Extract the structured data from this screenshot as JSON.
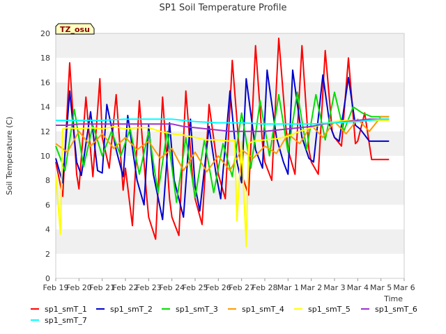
{
  "chart_data": {
    "type": "line",
    "title": "SP1 Soil Temperature Profile",
    "xlabel": "Time",
    "ylabel": "Soil Temperature (C)",
    "badge": "TZ_osu",
    "ylim": [
      0,
      20
    ],
    "yticks": [
      0,
      2,
      4,
      6,
      8,
      10,
      12,
      14,
      16,
      18,
      20
    ],
    "xlim": [
      0,
      15
    ],
    "xtick_labels": [
      "Feb 19",
      "Feb 20",
      "Feb 21",
      "Feb 22",
      "Feb 23",
      "Feb 24",
      "Feb 25",
      "Feb 26",
      "Feb 27",
      "Feb 28",
      "Mar 1",
      "Mar 2",
      "Mar 3",
      "Mar 4",
      "Mar 5",
      "Mar 6"
    ],
    "grid": "horizontal bands",
    "legend_position": "bottom",
    "series": [
      {
        "name": "sp1_smT_1",
        "color": "#ff0000",
        "x": [
          0,
          0.3,
          0.6,
          0.9,
          1,
          1.3,
          1.6,
          1.9,
          2,
          2.3,
          2.6,
          2.9,
          3,
          3.3,
          3.6,
          3.9,
          4,
          4.3,
          4.6,
          4.9,
          5,
          5.3,
          5.6,
          5.9,
          6,
          6.3,
          6.6,
          6.9,
          7,
          7.3,
          7.6,
          7.9,
          8,
          8.3,
          8.6,
          8.9,
          9,
          9.3,
          9.6,
          9.9,
          10,
          10.3,
          10.6,
          10.9,
          11,
          11.3,
          11.6,
          11.9,
          12,
          12.3,
          12.6,
          12.9,
          13,
          13.3,
          13.6,
          13.9,
          14,
          14.2,
          14.35
        ],
        "y": [
          9.5,
          6.7,
          17.6,
          8.5,
          7.3,
          14.8,
          8.3,
          16.3,
          11.5,
          9.0,
          15.0,
          7.2,
          9.0,
          4.3,
          14.5,
          7.0,
          5.0,
          3.2,
          14.8,
          6.5,
          5.0,
          3.5,
          15.3,
          8.0,
          6.5,
          4.4,
          14.2,
          10.0,
          8.5,
          6.5,
          17.8,
          10.5,
          8.5,
          6.8,
          19.0,
          11.0,
          9.5,
          8.0,
          19.6,
          12.5,
          10.5,
          8.5,
          19.0,
          10.5,
          9.5,
          8.5,
          18.6,
          12.0,
          11.5,
          10.8,
          18.0,
          11.0,
          11.2,
          13.5,
          9.7,
          9.7,
          9.7,
          9.7,
          9.7
        ]
      },
      {
        "name": "sp1_smT_2",
        "color": "#0000cc",
        "x": [
          0,
          0.3,
          0.6,
          0.9,
          1.1,
          1.5,
          1.8,
          2,
          2.2,
          2.6,
          2.9,
          3.1,
          3.5,
          3.8,
          4,
          4.2,
          4.6,
          4.9,
          5.1,
          5.5,
          5.8,
          6,
          6.2,
          6.6,
          6.9,
          7.1,
          7.5,
          7.8,
          8,
          8.2,
          8.6,
          8.9,
          9.1,
          9.5,
          9.8,
          10,
          10.2,
          10.6,
          10.9,
          11.1,
          11.5,
          11.8,
          12,
          12.2,
          12.6,
          12.9,
          13.1,
          13.5,
          13.8,
          14,
          14.35
        ],
        "y": [
          9.8,
          7.8,
          15.3,
          9.5,
          8.4,
          13.6,
          8.8,
          8.6,
          14.2,
          10.5,
          8.3,
          13.3,
          8.0,
          6.0,
          12.5,
          8.5,
          4.8,
          12.7,
          8.0,
          5.0,
          13.0,
          7.5,
          5.5,
          12.4,
          8.5,
          6.5,
          15.3,
          9.5,
          7.8,
          16.3,
          10.5,
          9.0,
          17.0,
          11.5,
          9.5,
          8.5,
          17.0,
          11.5,
          9.8,
          9.5,
          16.6,
          12.5,
          11.5,
          11.2,
          16.4,
          12.5,
          12.2,
          11.2,
          11.2,
          11.2,
          11.2
        ]
      },
      {
        "name": "sp1_smT_3",
        "color": "#00dd00",
        "x": [
          0,
          0.4,
          0.8,
          1.2,
          1.6,
          2,
          2.4,
          2.8,
          3.2,
          3.6,
          4,
          4.4,
          4.8,
          5.2,
          5.6,
          6,
          6.4,
          6.8,
          7.2,
          7.6,
          8,
          8.4,
          8.8,
          9.2,
          9.6,
          10,
          10.4,
          10.8,
          11.2,
          11.6,
          12,
          12.4,
          12.8,
          13.2,
          13.6,
          14,
          14.35
        ],
        "y": [
          10.8,
          8.8,
          13.8,
          9.1,
          12.5,
          10.0,
          12.0,
          10.0,
          12.2,
          8.5,
          12.0,
          7.0,
          12.0,
          6.2,
          11.5,
          6.6,
          11.3,
          7.0,
          11.0,
          8.3,
          13.5,
          9.0,
          14.5,
          10.0,
          15.0,
          10.3,
          15.2,
          10.5,
          15.0,
          11.3,
          15.2,
          12.0,
          14.0,
          13.5,
          13.2,
          13.2,
          13.2
        ]
      },
      {
        "name": "sp1_smT_4",
        "color": "#ff9900",
        "x": [
          0,
          0.5,
          1,
          1.5,
          2,
          2.5,
          3,
          3.5,
          4,
          4.5,
          5,
          5.5,
          6,
          6.5,
          7,
          7.5,
          8,
          8.5,
          9,
          9.5,
          10,
          10.5,
          11,
          11.5,
          12,
          12.5,
          13,
          13.5,
          14,
          14.35
        ],
        "y": [
          11.0,
          10.3,
          12.0,
          10.8,
          11.8,
          10.6,
          11.5,
          10.5,
          11.2,
          9.8,
          10.6,
          8.8,
          10.3,
          8.7,
          10.0,
          8.8,
          10.5,
          9.8,
          10.8,
          10.2,
          11.8,
          11.0,
          12.5,
          11.5,
          12.8,
          11.8,
          13.0,
          12.0,
          13.2,
          13.2
        ]
      },
      {
        "name": "sp1_smT_5",
        "color": "#ffff00",
        "x": [
          0,
          0.2,
          0.3,
          0.5,
          1,
          1.5,
          2,
          2.5,
          3,
          3.5,
          4,
          4.5,
          5,
          5.5,
          6,
          6.5,
          7,
          7.5,
          7.7,
          7.8,
          8,
          8.2,
          8.3,
          8.5,
          9,
          9.5,
          10,
          10.5,
          11,
          11.5,
          12,
          12.5,
          13,
          13.5,
          14,
          14.35
        ],
        "y": [
          8.5,
          3.6,
          12.2,
          12.3,
          12.2,
          12.3,
          12.2,
          12.4,
          12.2,
          12.3,
          12.3,
          12.0,
          11.8,
          11.7,
          11.5,
          11.3,
          11.3,
          11.2,
          11.3,
          4.7,
          11.2,
          2.6,
          11.0,
          11.2,
          11.3,
          11.4,
          11.6,
          12.0,
          12.3,
          12.6,
          12.8,
          12.9,
          12.9,
          12.9,
          12.9,
          12.9
        ]
      },
      {
        "name": "sp1_smT_6",
        "color": "#9933cc",
        "x": [
          0,
          0.5,
          1,
          2,
          3,
          4,
          5,
          5.5,
          6,
          6.5,
          7,
          7.5,
          8,
          8.5,
          9,
          9.5,
          10,
          10.5,
          11,
          11.5,
          12,
          12.5,
          13,
          13.5,
          14,
          14.35
        ],
        "y": [
          12.5,
          12.5,
          12.6,
          12.6,
          12.6,
          12.6,
          12.6,
          12.4,
          12.3,
          12.2,
          12.1,
          12.0,
          12.0,
          12.0,
          12.0,
          12.1,
          12.2,
          12.3,
          12.4,
          12.6,
          12.7,
          12.8,
          12.9,
          13.0,
          13.0,
          13.0
        ]
      },
      {
        "name": "sp1_smT_7",
        "color": "#00ffff",
        "x": [
          0,
          1,
          2,
          3,
          4,
          5,
          5.5,
          6,
          7,
          8,
          9,
          10,
          11,
          12,
          13,
          14,
          14.35
        ],
        "y": [
          12.9,
          12.9,
          12.9,
          13.0,
          13.0,
          13.0,
          12.9,
          12.8,
          12.7,
          12.7,
          12.6,
          12.6,
          12.6,
          12.7,
          12.8,
          13.0,
          13.0
        ]
      }
    ]
  }
}
